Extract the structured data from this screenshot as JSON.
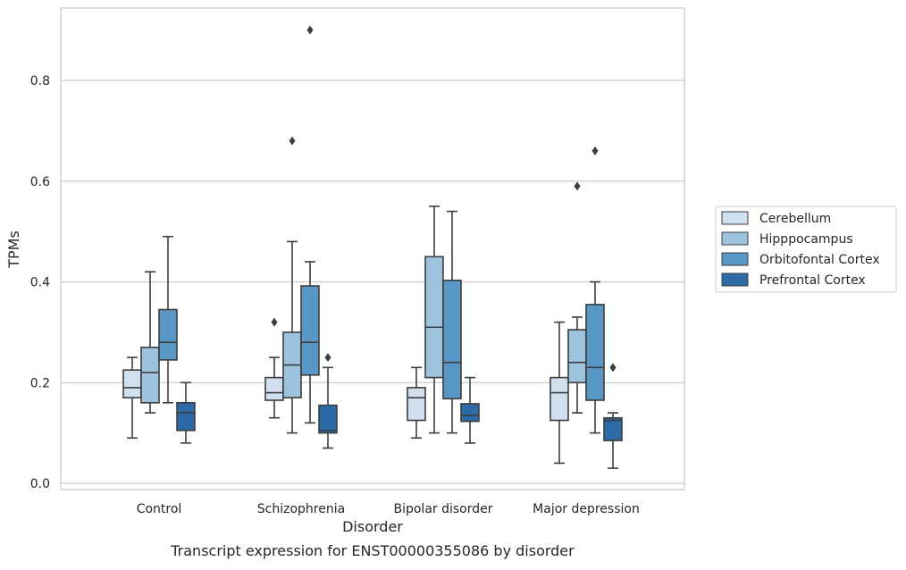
{
  "chart_data": {
    "type": "box",
    "title": "",
    "caption": "Transcript expression for ENST00000355086 by disorder",
    "xlabel": "Disorder",
    "ylabel": "TPMs",
    "ylim": [
      -0.01,
      0.95
    ],
    "yticks": [
      0.0,
      0.2,
      0.4,
      0.6,
      0.8
    ],
    "ytick_labels": [
      "0.0",
      "0.2",
      "0.4",
      "0.6",
      "0.8"
    ],
    "grid": "horizontal",
    "legend_position": "right",
    "categories": [
      "Control",
      "Schizophrenia",
      "Bipolar disorder",
      "Major depression"
    ],
    "series": [
      {
        "name": "Cerebellum",
        "color": "#d0e0ef",
        "boxes": [
          {
            "whisker_low": 0.09,
            "q1": 0.17,
            "median": 0.19,
            "q3": 0.225,
            "whisker_high": 0.25,
            "outliers": []
          },
          {
            "whisker_low": 0.13,
            "q1": 0.165,
            "median": 0.18,
            "q3": 0.21,
            "whisker_high": 0.25,
            "outliers": [
              0.32
            ]
          },
          {
            "whisker_low": 0.09,
            "q1": 0.125,
            "median": 0.17,
            "q3": 0.19,
            "whisker_high": 0.23,
            "outliers": []
          },
          {
            "whisker_low": 0.04,
            "q1": 0.125,
            "median": 0.18,
            "q3": 0.21,
            "whisker_high": 0.32,
            "outliers": []
          }
        ]
      },
      {
        "name": "Hipppocampus",
        "color": "#9dc3de",
        "boxes": [
          {
            "whisker_low": 0.14,
            "q1": 0.16,
            "median": 0.22,
            "q3": 0.27,
            "whisker_high": 0.42,
            "outliers": []
          },
          {
            "whisker_low": 0.1,
            "q1": 0.17,
            "median": 0.235,
            "q3": 0.3,
            "whisker_high": 0.48,
            "outliers": [
              0.68
            ]
          },
          {
            "whisker_low": 0.1,
            "q1": 0.21,
            "median": 0.31,
            "q3": 0.45,
            "whisker_high": 0.55,
            "outliers": []
          },
          {
            "whisker_low": 0.14,
            "q1": 0.2,
            "median": 0.24,
            "q3": 0.305,
            "whisker_high": 0.33,
            "outliers": [
              0.59
            ]
          }
        ]
      },
      {
        "name": "Orbitofontal Cortex",
        "color": "#5897c6",
        "boxes": [
          {
            "whisker_low": 0.16,
            "q1": 0.245,
            "median": 0.28,
            "q3": 0.345,
            "whisker_high": 0.49,
            "outliers": []
          },
          {
            "whisker_low": 0.12,
            "q1": 0.215,
            "median": 0.28,
            "q3": 0.392,
            "whisker_high": 0.44,
            "outliers": [
              0.9
            ]
          },
          {
            "whisker_low": 0.1,
            "q1": 0.168,
            "median": 0.24,
            "q3": 0.403,
            "whisker_high": 0.54,
            "outliers": []
          },
          {
            "whisker_low": 0.1,
            "q1": 0.165,
            "median": 0.23,
            "q3": 0.355,
            "whisker_high": 0.4,
            "outliers": [
              0.66
            ]
          }
        ]
      },
      {
        "name": "Prefrontal Cortex",
        "color": "#2c6aa8",
        "boxes": [
          {
            "whisker_low": 0.08,
            "q1": 0.105,
            "median": 0.14,
            "q3": 0.16,
            "whisker_high": 0.2,
            "outliers": []
          },
          {
            "whisker_low": 0.07,
            "q1": 0.1,
            "median": 0.105,
            "q3": 0.155,
            "whisker_high": 0.23,
            "outliers": [
              0.25
            ]
          },
          {
            "whisker_low": 0.08,
            "q1": 0.123,
            "median": 0.135,
            "q3": 0.158,
            "whisker_high": 0.21,
            "outliers": []
          },
          {
            "whisker_low": 0.03,
            "q1": 0.085,
            "median": 0.125,
            "q3": 0.13,
            "whisker_high": 0.14,
            "outliers": [
              0.23
            ]
          }
        ]
      }
    ]
  }
}
